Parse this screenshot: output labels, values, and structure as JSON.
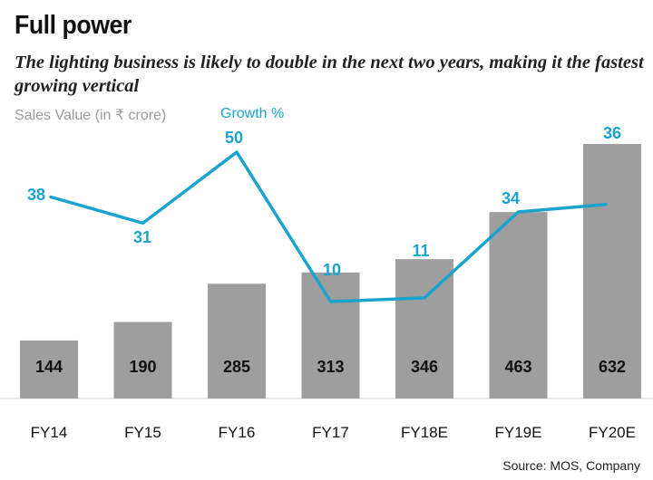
{
  "chart_data": {
    "type": "bar",
    "title": "Full power",
    "subtitle": "The lighting business is likely to double in the next two years, making it the fastest growing vertical",
    "categories": [
      "FY14",
      "FY15",
      "FY16",
      "FY17",
      "FY18E",
      "FY19E",
      "FY20E"
    ],
    "series": [
      {
        "name": "Sales Value (in ₹ crore)",
        "type": "bar",
        "values": [
          144,
          190,
          285,
          313,
          346,
          463,
          632
        ],
        "color": "#9e9e9e"
      },
      {
        "name": "Growth %",
        "type": "line",
        "values": [
          38,
          31,
          50,
          10,
          11,
          34,
          36
        ],
        "color": "#1aa3cf"
      }
    ],
    "bar_ylim": [
      0,
      632
    ],
    "line_ylim": [
      10,
      50
    ],
    "grid": false,
    "legend": "top-left",
    "source": "Source: MOS, Company"
  }
}
